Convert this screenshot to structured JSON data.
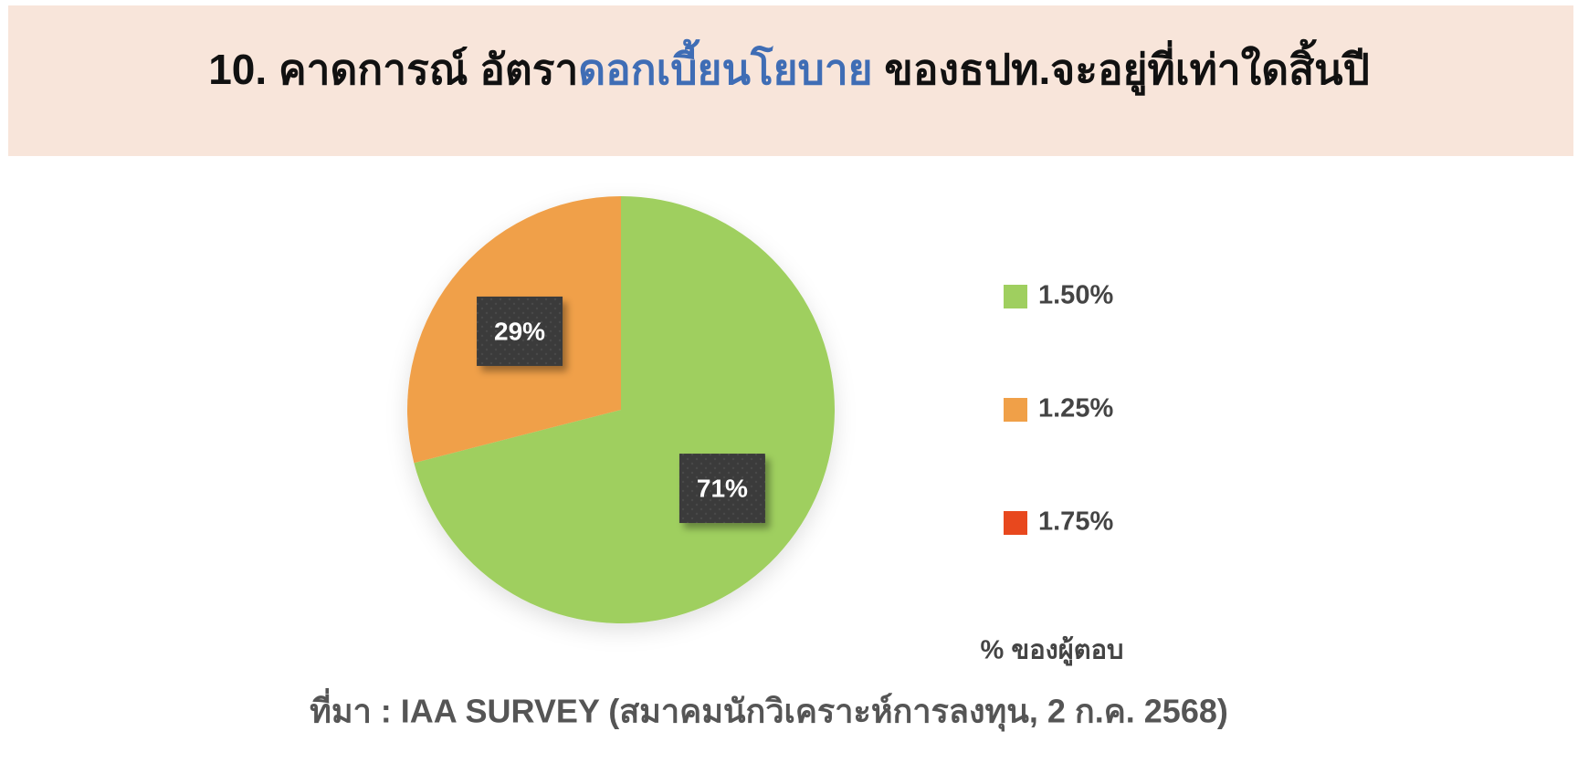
{
  "chart_data": {
    "type": "pie",
    "title_parts": [
      "10. คาดการณ์ อัตรา",
      "ดอกเบี้ยนโยบาย",
      " ของธปท.จะอยู่ที่เท่าใดสิ้นปี"
    ],
    "title_colors": [
      "#111111",
      "#3f6db5",
      "#111111"
    ],
    "categories": [
      "1.50%",
      "1.25%",
      "1.75%"
    ],
    "values": [
      71,
      29,
      0
    ],
    "value_labels": [
      "71%",
      "29%",
      null
    ],
    "colors": [
      "#9fcf5f",
      "#f0a048",
      "#e8481e"
    ],
    "note": "% ของผู้ตอบ",
    "source": "ที่มา : IAA SURVEY (สมาคมนักวิเคราะห์การลงทุน, 2 ก.ค. 2568)"
  }
}
